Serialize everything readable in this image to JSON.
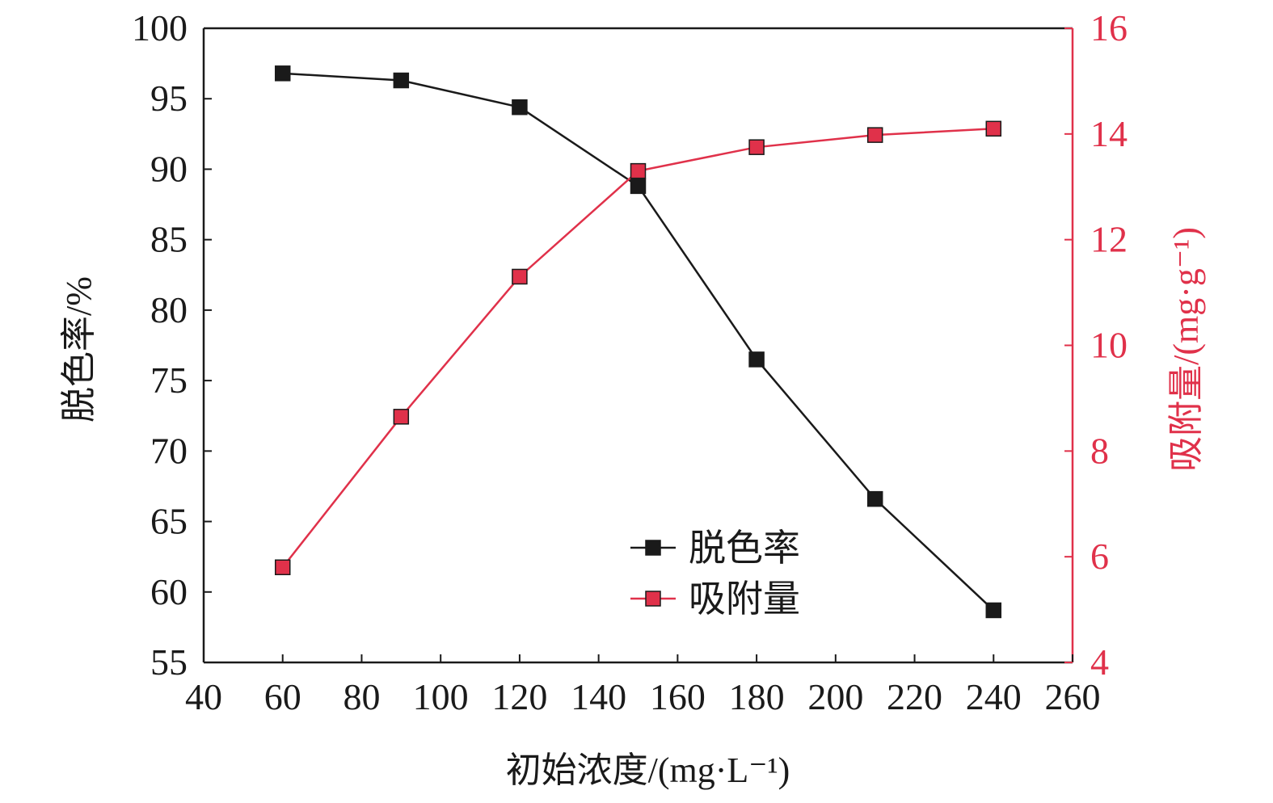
{
  "chart_data": {
    "type": "line",
    "x": [
      60,
      90,
      120,
      150,
      180,
      210,
      240
    ],
    "xlim": [
      40,
      260
    ],
    "x_ticks": [
      40,
      60,
      80,
      100,
      120,
      140,
      160,
      180,
      200,
      220,
      240,
      260
    ],
    "xlabel": "初始浓度/(mg·L⁻¹)",
    "y_left": {
      "label": "脱色率/%",
      "lim": [
        55,
        100
      ],
      "ticks": [
        55,
        60,
        65,
        70,
        75,
        80,
        85,
        90,
        95,
        100
      ],
      "color": "#1a1a1a"
    },
    "y_right": {
      "label": "吸附量/(mg·g⁻¹)",
      "lim": [
        4,
        16
      ],
      "ticks": [
        4,
        6,
        8,
        10,
        12,
        14,
        16
      ],
      "color": "#e0314a"
    },
    "series": [
      {
        "name": "脱色率",
        "axis": "left",
        "color": "#1a1a1a",
        "marker": "square",
        "values": [
          96.8,
          96.3,
          94.4,
          88.8,
          76.5,
          66.6,
          58.7
        ]
      },
      {
        "name": "吸附量",
        "axis": "right",
        "color": "#e0314a",
        "marker": "square",
        "values": [
          5.8,
          8.65,
          11.3,
          13.3,
          13.75,
          13.98,
          14.1
        ]
      }
    ],
    "legend": {
      "position": "bottom-center"
    },
    "grid": false
  }
}
